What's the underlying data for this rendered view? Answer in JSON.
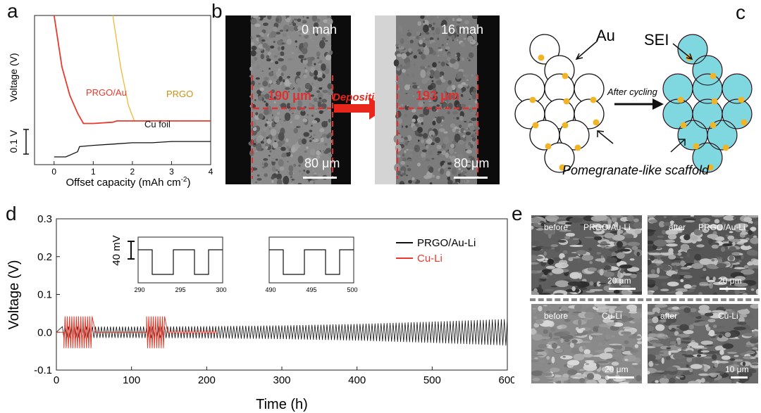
{
  "panel_labels": {
    "a": "a",
    "b": "b",
    "c": "c",
    "d": "d",
    "e": "e"
  },
  "panel_a": {
    "ylabel": "Voltage (V)",
    "xlabel": "Offset capacity (mAh cm",
    "xlabel_sup": "-2",
    "xlabel_close": ")",
    "scale_bar_label": "0.1 V",
    "curve_labels": {
      "prgo_au": "PRGO/Au",
      "prgo": "PRGO",
      "cu": "Cu foil"
    },
    "colors": {
      "prgo_au": "#e8392b",
      "prgo": "#f0b429",
      "cu": "#111111"
    }
  },
  "panel_b": {
    "left_label": "0 mah",
    "right_label": "16 mah",
    "left_thickness": "190 μm",
    "right_thickness": "193 μm",
    "arrow_label": "Deposition",
    "scale_bar": "80 μm"
  },
  "panel_c": {
    "au_label": "Au",
    "sei_label": "SEI",
    "arrow_label": "After cycling",
    "caption": "Pomegranate-like scaffold",
    "colors": {
      "particle": "#f0b429",
      "sei_fill": "#7fd8df",
      "sei_border": "#d84a7a"
    }
  },
  "panel_d": {
    "ylabel": "Voltage (V)",
    "xlabel": "Time (h)",
    "legend": {
      "prgo": "PRGO/Au-Li",
      "cu": "Cu-Li"
    },
    "inset_scale": "40 mV",
    "inset1_ticks": [
      "290",
      "295",
      "300"
    ],
    "inset2_ticks": [
      "490",
      "495",
      "500"
    ]
  },
  "panel_e": {
    "tl_state": "before",
    "tl_sample": "PRGO/Au-Li",
    "tl_scale": "20 μm",
    "tr_state": "after",
    "tr_sample": "PRGO/Au-Li",
    "tr_scale": "20 μm",
    "bl_state": "before",
    "bl_sample": "Cu-Li",
    "bl_scale": "20 μm",
    "br_state": "after",
    "br_sample": "Cu-Li",
    "br_scale": "10 μm"
  },
  "chart_data": [
    {
      "type": "line",
      "xlabel": "Offset capacity (mAh cm-2)",
      "ylabel": "Voltage (V)",
      "xlim": [
        -0.5,
        4
      ],
      "x_ticks": [
        0,
        1,
        2,
        3,
        4
      ],
      "series": [
        {
          "name": "PRGO/Au",
          "x": [
            0,
            0.2,
            0.4,
            0.6,
            0.75,
            1.0,
            1.5,
            1.6,
            2.0,
            3.0,
            4.0
          ],
          "y": [
            0.45,
            0.25,
            0.14,
            0.07,
            0.03,
            0.03,
            0.035,
            0.04,
            0.04,
            0.04,
            0.04
          ]
        },
        {
          "name": "PRGO",
          "x": [
            1.5,
            1.7,
            1.9,
            2.05,
            2.5,
            3.0,
            4.0
          ],
          "y": [
            0.45,
            0.25,
            0.1,
            0.04,
            0.04,
            0.04,
            0.04
          ]
        },
        {
          "name": "Cu foil",
          "x": [
            0,
            0.3,
            0.6,
            0.65,
            1.0,
            1.5,
            2.0,
            2.5,
            3.0,
            4.0
          ],
          "y": [
            -0.1,
            -0.1,
            -0.08,
            -0.06,
            -0.055,
            -0.05,
            -0.045,
            -0.045,
            -0.04,
            -0.04
          ]
        }
      ]
    },
    {
      "type": "line",
      "xlabel": "Time (h)",
      "ylabel": "Voltage (V)",
      "xlim": [
        0,
        600
      ],
      "ylim": [
        -0.1,
        0.3
      ],
      "x_ticks": [
        0,
        100,
        200,
        300,
        400,
        500,
        600
      ],
      "y_ticks": [
        -0.1,
        0.0,
        0.1,
        0.2,
        0.3
      ],
      "series": [
        {
          "name": "PRGO/Au-Li",
          "x": [
            0,
            100,
            200,
            300,
            400,
            500,
            600
          ],
          "y_amplitude": [
            0.015,
            0.015,
            0.016,
            0.018,
            0.022,
            0.028,
            0.035
          ]
        },
        {
          "name": "Cu-Li",
          "x": [
            10,
            30,
            50,
            120,
            145,
            215
          ],
          "y_amplitude": [
            0.04,
            0.04,
            0.04,
            0.04,
            0.04,
            0.004
          ]
        }
      ]
    }
  ]
}
